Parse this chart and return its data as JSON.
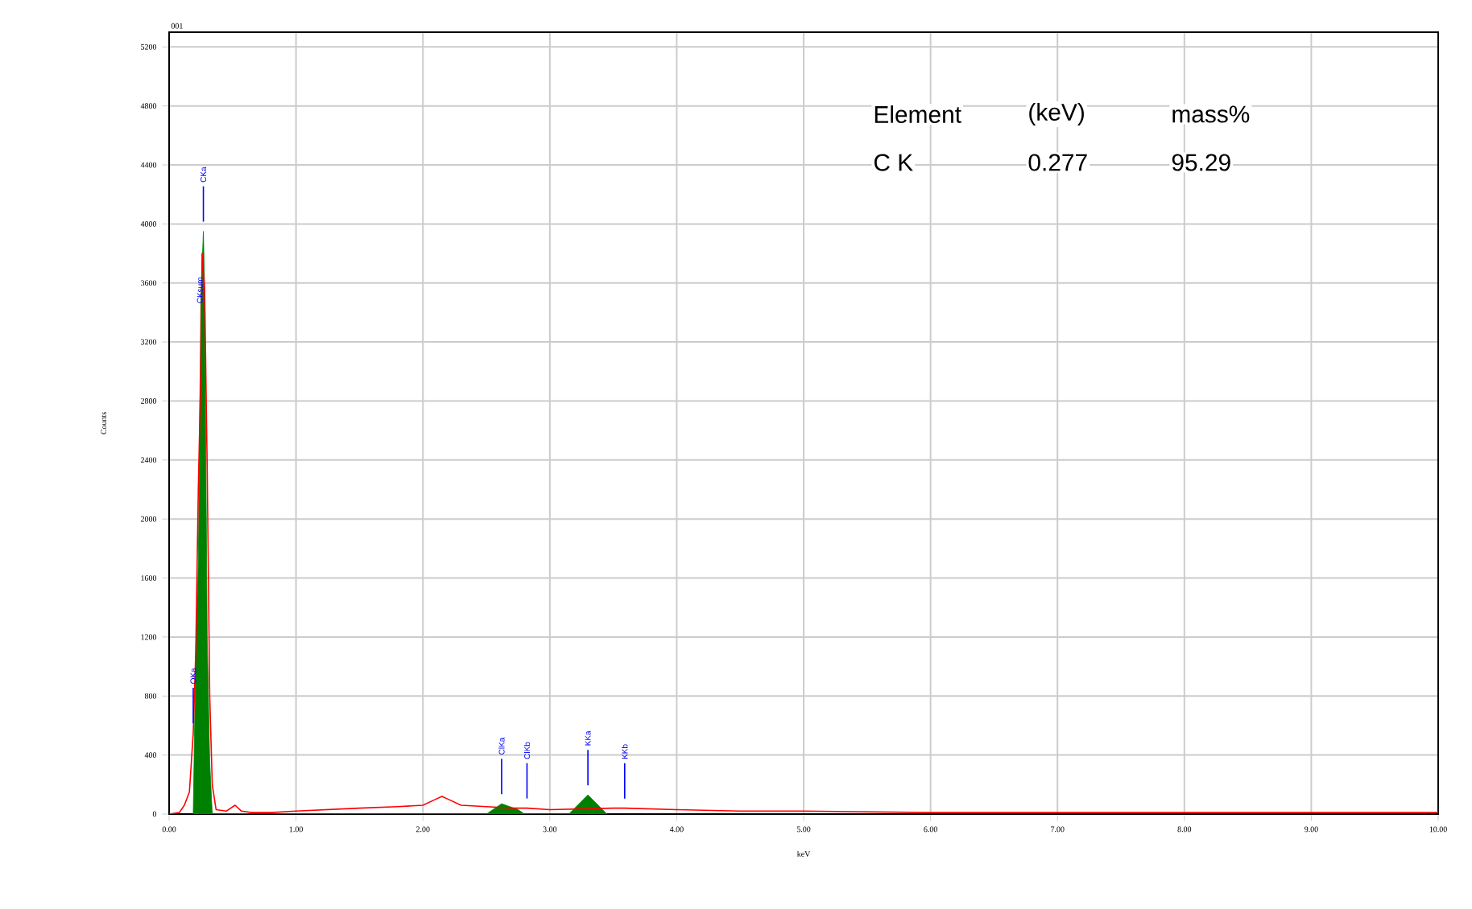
{
  "chart_data": {
    "type": "line",
    "xlabel": "keV",
    "ylabel": "Counts",
    "xlim": [
      0,
      10
    ],
    "xticks": [
      {
        "value": 0,
        "label": "0.00"
      },
      {
        "value": 1,
        "label": "1.00"
      },
      {
        "value": 2,
        "label": "2.00"
      },
      {
        "value": 3,
        "label": "3.00"
      },
      {
        "value": 4,
        "label": "4.00"
      },
      {
        "value": 5,
        "label": "5.00"
      },
      {
        "value": 6,
        "label": "6.00"
      },
      {
        "value": 7,
        "label": "7.00"
      },
      {
        "value": 8,
        "label": "8.00"
      },
      {
        "value": 9,
        "label": "9.00"
      },
      {
        "value": 10,
        "label": "10.00"
      }
    ],
    "ylim": [
      0,
      5300
    ],
    "yticks": [
      0,
      400,
      800,
      1200,
      1600,
      2000,
      2400,
      2800,
      3200,
      3600,
      4000,
      4400,
      4800,
      5200
    ],
    "grid": true,
    "series": [
      {
        "type": "area",
        "color": "#008000",
        "x": [
          0.19,
          0.21,
          0.23,
          0.25,
          0.27,
          0.28,
          0.3,
          0.32,
          0.34,
          2.5,
          2.62,
          2.75,
          2.8,
          3.15,
          3.3,
          3.45
        ],
        "values": [
          0,
          1100,
          1700,
          3500,
          3950,
          3550,
          1200,
          350,
          0,
          0,
          70,
          30,
          0,
          0,
          130,
          0
        ]
      },
      {
        "color": "#ff0000",
        "x": [
          0,
          0.08,
          0.12,
          0.16,
          0.19,
          0.21,
          0.23,
          0.25,
          0.26,
          0.28,
          0.3,
          0.32,
          0.34,
          0.37,
          0.45,
          0.52,
          0.57,
          0.65,
          0.8,
          1.0,
          1.5,
          1.8,
          2.0,
          2.1,
          2.15,
          2.2,
          2.3,
          2.5,
          2.7,
          2.82,
          3.0,
          3.5,
          3.59,
          4.0,
          4.5,
          5,
          6,
          7,
          8,
          9,
          10
        ],
        "values": [
          0,
          10,
          60,
          150,
          550,
          1100,
          2200,
          3000,
          3800,
          3550,
          2350,
          800,
          200,
          30,
          20,
          60,
          20,
          10,
          10,
          20,
          40,
          50,
          60,
          100,
          120,
          100,
          60,
          50,
          40,
          40,
          30,
          40,
          40,
          30,
          20,
          20,
          10,
          10,
          10,
          10,
          10
        ]
      }
    ],
    "annotations": [
      "001",
      "Element",
      "(keV)",
      "mass%",
      "C K",
      "0.277",
      "95.29",
      {
        "text": "CKa",
        "x": 0.27,
        "y": 3950
      },
      {
        "text": "CKsum",
        "x": 0.28,
        "y": 3550
      },
      {
        "text": "OKa",
        "x": 0.19,
        "y": 550
      },
      {
        "text": "ClKa",
        "x": 2.62,
        "y": 70
      },
      {
        "text": "ClKb",
        "x": 2.82,
        "y": 40
      },
      {
        "text": "KKa",
        "x": 3.3,
        "y": 130
      },
      {
        "text": "KKb",
        "x": 3.59,
        "y": 40
      }
    ]
  }
}
